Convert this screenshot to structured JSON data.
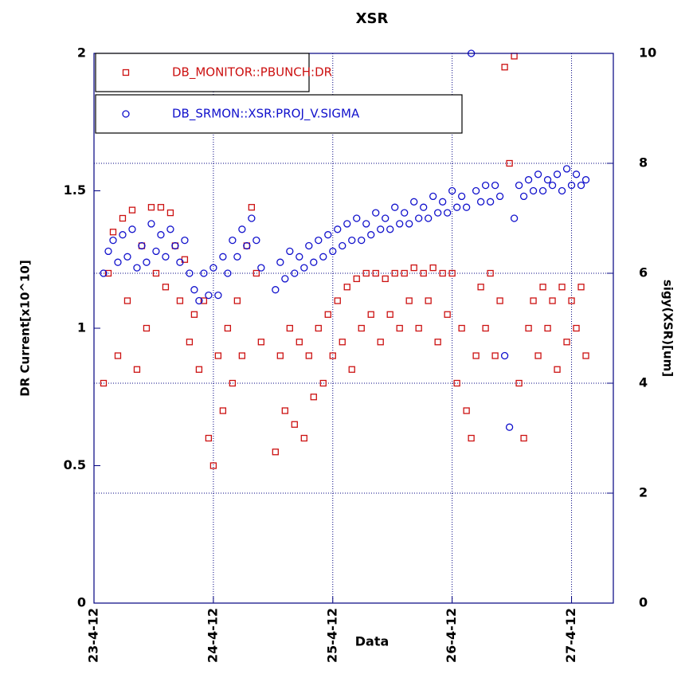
{
  "chart_data": {
    "type": "scatter",
    "title": "XSR",
    "x_label": "Data",
    "y_label": "DR Current[x10^10]",
    "y2_label": "sigy(XSR)[um]",
    "xlim": [
      0,
      4.35
    ],
    "xticks": [
      {
        "value": 0,
        "label": "23-4-12"
      },
      {
        "value": 1,
        "label": "24-4-12"
      },
      {
        "value": 2,
        "label": "25-4-12"
      },
      {
        "value": 3,
        "label": "26-4-12"
      },
      {
        "value": 4,
        "label": "27-4-12"
      }
    ],
    "ylim": [
      0,
      2
    ],
    "yticks": [
      0,
      0.5,
      1,
      1.5,
      2
    ],
    "y2lim": [
      0,
      10
    ],
    "y2ticks": [
      0,
      2,
      4,
      6,
      8,
      10
    ],
    "grid": true,
    "legend": "upper left",
    "x": [
      0.08,
      0.12,
      0.16,
      0.2,
      0.24,
      0.28,
      0.32,
      0.36,
      0.4,
      0.44,
      0.48,
      0.52,
      0.56,
      0.6,
      0.64,
      0.68,
      0.72,
      0.76,
      0.8,
      0.84,
      0.88,
      0.92,
      0.96,
      1.0,
      1.04,
      1.08,
      1.12,
      1.16,
      1.2,
      1.24,
      1.28,
      1.32,
      1.36,
      1.4,
      1.44,
      1.48,
      1.52,
      1.56,
      1.6,
      1.64,
      1.68,
      1.72,
      1.76,
      1.8,
      1.84,
      1.88,
      1.92,
      1.96,
      2.0,
      2.04,
      2.08,
      2.12,
      2.16,
      2.2,
      2.24,
      2.28,
      2.32,
      2.36,
      2.4,
      2.44,
      2.48,
      2.52,
      2.56,
      2.6,
      2.64,
      2.68,
      2.72,
      2.76,
      2.8,
      2.84,
      2.88,
      2.92,
      2.96,
      3.0,
      3.04,
      3.08,
      3.12,
      3.16,
      3.2,
      3.24,
      3.28,
      3.32,
      3.36,
      3.4,
      3.44,
      3.48,
      3.52,
      3.56,
      3.6,
      3.64,
      3.68,
      3.72,
      3.76,
      3.8,
      3.84,
      3.88,
      3.92,
      3.96,
      4.0,
      4.04,
      4.08,
      4.12
    ],
    "series": [
      {
        "name": "DB_MONITOR::PBUNCH:DR",
        "color": "#cc1111",
        "marker": "square",
        "values": [
          0.8,
          1.2,
          1.35,
          0.9,
          1.4,
          1.1,
          1.43,
          0.85,
          1.3,
          1.0,
          1.44,
          1.2,
          1.44,
          1.15,
          1.42,
          1.3,
          1.1,
          1.25,
          0.95,
          1.05,
          0.85,
          1.1,
          0.6,
          0.5,
          0.9,
          0.7,
          1.0,
          0.8,
          1.1,
          0.9,
          1.3,
          1.44,
          1.2,
          0.95,
          null,
          null,
          0.55,
          0.9,
          0.7,
          1.0,
          0.65,
          0.95,
          0.6,
          0.9,
          0.75,
          1.0,
          0.8,
          1.05,
          0.9,
          1.1,
          0.95,
          1.15,
          0.85,
          1.18,
          1.0,
          1.2,
          1.05,
          1.2,
          0.95,
          1.18,
          1.05,
          1.2,
          1.0,
          1.2,
          1.1,
          1.22,
          1.0,
          1.2,
          1.1,
          1.22,
          0.95,
          1.2,
          1.05,
          1.2,
          0.8,
          1.0,
          0.7,
          0.6,
          0.9,
          1.15,
          1.0,
          1.2,
          0.9,
          1.1,
          1.95,
          1.6,
          1.99,
          0.8,
          0.6,
          1.0,
          1.1,
          0.9,
          1.15,
          1.0,
          1.1,
          0.85,
          1.15,
          0.95,
          1.1,
          1.0,
          1.15,
          0.9
        ]
      },
      {
        "name": "DB_SRMON::XSR:PROJ_V.SIGMA",
        "color": "#1111cc",
        "marker": "circle",
        "axis": "y2",
        "values": [
          6.0,
          6.4,
          6.6,
          6.2,
          6.7,
          6.3,
          6.8,
          6.1,
          6.5,
          6.2,
          6.9,
          6.4,
          6.7,
          6.3,
          6.8,
          6.5,
          6.2,
          6.6,
          6.0,
          5.7,
          5.5,
          6.0,
          5.6,
          6.1,
          5.6,
          6.3,
          6.0,
          6.6,
          6.3,
          6.8,
          6.5,
          7.0,
          6.6,
          6.1,
          null,
          null,
          5.7,
          6.2,
          5.9,
          6.4,
          6.0,
          6.3,
          6.1,
          6.5,
          6.2,
          6.6,
          6.3,
          6.7,
          6.4,
          6.8,
          6.5,
          6.9,
          6.6,
          7.0,
          6.6,
          6.9,
          6.7,
          7.1,
          6.8,
          7.0,
          6.8,
          7.2,
          6.9,
          7.1,
          6.9,
          7.3,
          7.0,
          7.2,
          7.0,
          7.4,
          7.1,
          7.3,
          7.1,
          7.5,
          7.2,
          7.4,
          7.2,
          10,
          7.5,
          7.3,
          7.6,
          7.3,
          7.6,
          7.4,
          4.5,
          3.2,
          7.0,
          7.6,
          7.4,
          7.7,
          7.5,
          7.8,
          7.5,
          7.7,
          7.6,
          7.8,
          7.5,
          7.9,
          7.6,
          7.8,
          7.6,
          7.7
        ]
      }
    ]
  }
}
